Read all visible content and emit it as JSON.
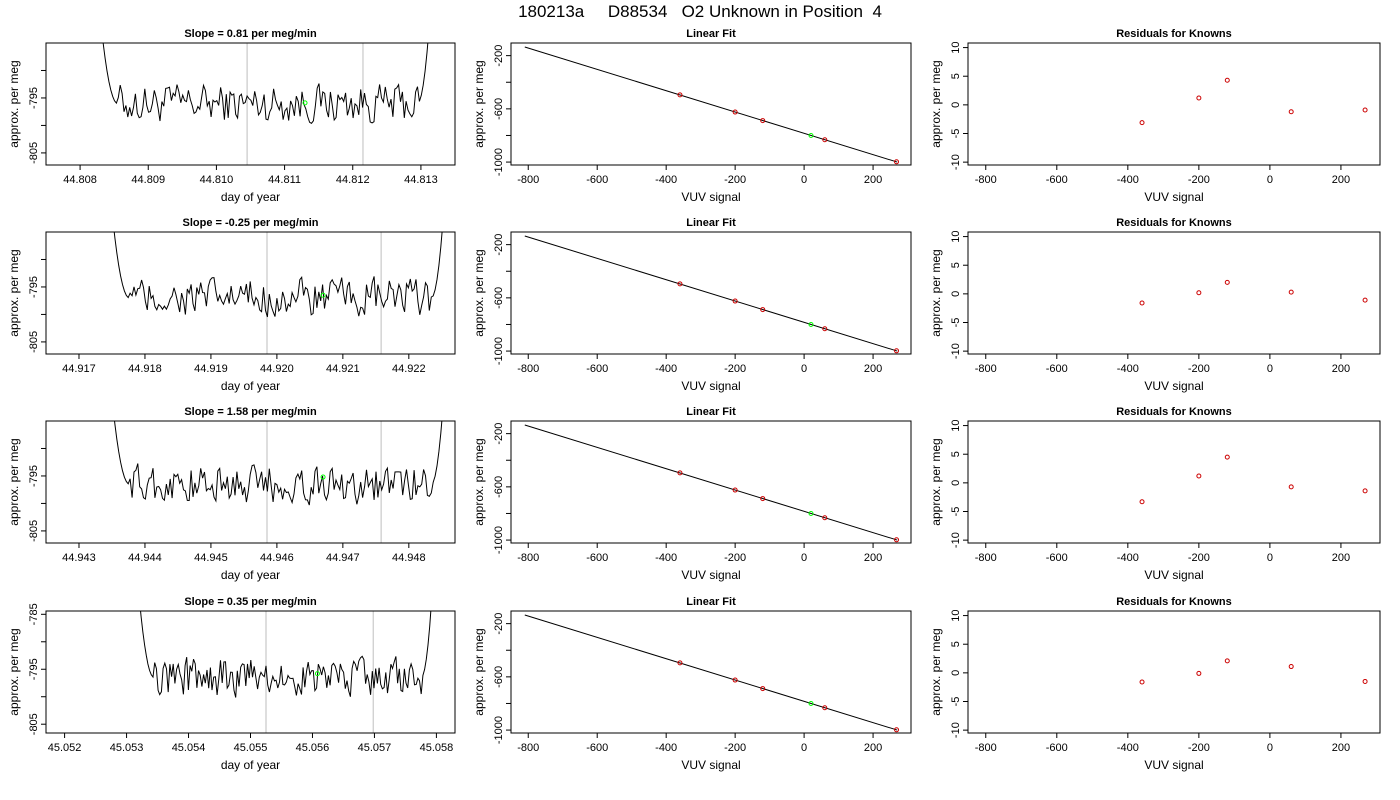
{
  "title": "180213a     D88534   O2 Unknown in Position  4",
  "colors": {
    "line": "#000000",
    "grid": "#bebebe",
    "unknown": "#00ff00",
    "known": "#cc0000"
  },
  "chart_data": [
    {
      "row": 1,
      "type": "line",
      "title": "Slope =  0.81  per meg/min",
      "xlabel": "day of year",
      "ylabel": "approx. per meg",
      "xlim": [
        44.8075,
        44.8135
      ],
      "ylim": [
        -807.2,
        -785.0
      ],
      "xticks": [
        44.808,
        44.809,
        44.81,
        44.811,
        44.812,
        44.813
      ],
      "xtick_labels": [
        "44.808",
        "44.809",
        "44.810",
        "44.811",
        "44.812",
        "44.813"
      ],
      "yticks": [
        -805,
        -800,
        -795,
        -790
      ],
      "ytick_labels": [
        "-805",
        "",
        "-795",
        ""
      ],
      "trace_range": [
        44.8082,
        44.8132
      ],
      "noise_level": -796.0,
      "vlines": [
        44.81045,
        44.81215
      ],
      "unknown_point": [
        44.8113,
        -795.9
      ]
    },
    {
      "row": 1,
      "type": "scatter",
      "title": "Linear Fit",
      "xlabel": "VUV signal",
      "ylabel": "approx. per meg",
      "xlim": [
        -850,
        310
      ],
      "ylim": [
        -1022,
        -105
      ],
      "xticks": [
        -800,
        -600,
        -400,
        -200,
        0,
        200
      ],
      "xtick_labels": [
        "-800",
        "-600",
        "-400",
        "-200",
        "0",
        "200"
      ],
      "yticks": [
        -1000,
        -800,
        -600,
        -400,
        -200
      ],
      "ytick_labels": [
        "-1000",
        "",
        "-600",
        "",
        "-200"
      ],
      "fit_line": [
        [
          -810,
          -135
        ],
        [
          270,
          -1000
        ]
      ],
      "knowns": [
        [
          -360,
          -495
        ],
        [
          -200,
          -624
        ],
        [
          -120,
          -688
        ],
        [
          60,
          -832
        ],
        [
          268,
          -998
        ]
      ],
      "unknown": [
        [
          20,
          -800
        ]
      ]
    },
    {
      "row": 1,
      "type": "scatter",
      "title": "Residuals for Knowns",
      "xlabel": "VUV signal",
      "ylabel": "approx. per meg",
      "xlim": [
        -850,
        310
      ],
      "ylim": [
        -10.5,
        10.8
      ],
      "xticks": [
        -800,
        -600,
        -400,
        -200,
        0,
        200
      ],
      "xtick_labels": [
        "-800",
        "-600",
        "-400",
        "-200",
        "0",
        "200"
      ],
      "yticks": [
        -10,
        -5,
        0,
        5,
        10
      ],
      "ytick_labels": [
        "-10",
        "-5",
        "0",
        "5",
        "10"
      ],
      "points": [
        [
          -360,
          -3.1
        ],
        [
          -200,
          1.2
        ],
        [
          -120,
          4.3
        ],
        [
          60,
          -1.2
        ],
        [
          268,
          -0.9
        ]
      ]
    },
    {
      "row": 2,
      "type": "line",
      "title": "Slope =  -0.25  per meg/min",
      "xlabel": "day of year",
      "ylabel": "approx. per meg",
      "xlim": [
        44.9165,
        44.9227
      ],
      "ylim": [
        -807.2,
        -785.0
      ],
      "xticks": [
        44.917,
        44.918,
        44.919,
        44.92,
        44.921,
        44.922
      ],
      "xtick_labels": [
        "44.917",
        "44.918",
        "44.919",
        "44.920",
        "44.921",
        "44.922"
      ],
      "yticks": [
        -805,
        -800,
        -795,
        -790
      ],
      "ytick_labels": [
        "-805",
        "",
        "-795",
        ""
      ],
      "trace_range": [
        44.9174,
        44.9226
      ],
      "noise_level": -797.0,
      "vlines": [
        44.91985,
        44.92158
      ],
      "unknown_point": [
        44.9207,
        -796.5
      ]
    },
    {
      "row": 2,
      "type": "scatter",
      "title": "Linear Fit",
      "xlabel": "VUV signal",
      "ylabel": "approx. per meg",
      "xlim": [
        -850,
        310
      ],
      "ylim": [
        -1022,
        -105
      ],
      "xticks": [
        -800,
        -600,
        -400,
        -200,
        0,
        200
      ],
      "xtick_labels": [
        "-800",
        "-600",
        "-400",
        "-200",
        "0",
        "200"
      ],
      "yticks": [
        -1000,
        -800,
        -600,
        -400,
        -200
      ],
      "ytick_labels": [
        "-1000",
        "",
        "-600",
        "",
        "-200"
      ],
      "fit_line": [
        [
          -810,
          -135
        ],
        [
          270,
          -1000
        ]
      ],
      "knowns": [
        [
          -360,
          -495
        ],
        [
          -200,
          -624
        ],
        [
          -120,
          -688
        ],
        [
          60,
          -832
        ],
        [
          268,
          -998
        ]
      ],
      "unknown": [
        [
          20,
          -800
        ]
      ]
    },
    {
      "row": 2,
      "type": "scatter",
      "title": "Residuals for Knowns",
      "xlabel": "VUV signal",
      "ylabel": "approx. per meg",
      "xlim": [
        -850,
        310
      ],
      "ylim": [
        -10.5,
        10.8
      ],
      "xticks": [
        -800,
        -600,
        -400,
        -200,
        0,
        200
      ],
      "xtick_labels": [
        "-800",
        "-600",
        "-400",
        "-200",
        "0",
        "200"
      ],
      "yticks": [
        -10,
        -5,
        0,
        5,
        10
      ],
      "ytick_labels": [
        "-10",
        "-5",
        "0",
        "5",
        "10"
      ],
      "points": [
        [
          -360,
          -1.6
        ],
        [
          -200,
          0.2
        ],
        [
          -120,
          2.0
        ],
        [
          60,
          0.3
        ],
        [
          268,
          -1.1
        ]
      ]
    },
    {
      "row": 3,
      "type": "line",
      "title": "Slope =  1.58  per meg/min",
      "xlabel": "day of year",
      "ylabel": "approx. per meg",
      "xlim": [
        44.9425,
        44.9487
      ],
      "ylim": [
        -807.2,
        -785.0
      ],
      "xticks": [
        44.943,
        44.944,
        44.945,
        44.946,
        44.947,
        44.948
      ],
      "xtick_labels": [
        "44.943",
        "44.944",
        "44.945",
        "44.946",
        "44.947",
        "44.948"
      ],
      "yticks": [
        -805,
        -800,
        -795,
        -790
      ],
      "ytick_labels": [
        "-805",
        "",
        "-795",
        ""
      ],
      "trace_range": [
        44.9434,
        44.9486
      ],
      "noise_level": -796.5,
      "vlines": [
        44.94585,
        44.94758
      ],
      "unknown_point": [
        44.9467,
        -795.2
      ]
    },
    {
      "row": 3,
      "type": "scatter",
      "title": "Linear Fit",
      "xlabel": "VUV signal",
      "ylabel": "approx. per meg",
      "xlim": [
        -850,
        310
      ],
      "ylim": [
        -1022,
        -105
      ],
      "xticks": [
        -800,
        -600,
        -400,
        -200,
        0,
        200
      ],
      "xtick_labels": [
        "-800",
        "-600",
        "-400",
        "-200",
        "0",
        "200"
      ],
      "yticks": [
        -1000,
        -800,
        -600,
        -400,
        -200
      ],
      "ytick_labels": [
        "-1000",
        "",
        "-600",
        "",
        "-200"
      ],
      "fit_line": [
        [
          -810,
          -135
        ],
        [
          270,
          -1000
        ]
      ],
      "knowns": [
        [
          -360,
          -495
        ],
        [
          -200,
          -624
        ],
        [
          -120,
          -688
        ],
        [
          60,
          -832
        ],
        [
          268,
          -998
        ]
      ],
      "unknown": [
        [
          20,
          -800
        ]
      ]
    },
    {
      "row": 3,
      "type": "scatter",
      "title": "Residuals for Knowns",
      "xlabel": "VUV signal",
      "ylabel": "approx. per meg",
      "xlim": [
        -850,
        310
      ],
      "ylim": [
        -10.5,
        10.8
      ],
      "xticks": [
        -800,
        -600,
        -400,
        -200,
        0,
        200
      ],
      "xtick_labels": [
        "-800",
        "-600",
        "-400",
        "-200",
        "0",
        "200"
      ],
      "yticks": [
        -10,
        -5,
        0,
        5,
        10
      ],
      "ytick_labels": [
        "-10",
        "-5",
        "0",
        "5",
        "10"
      ],
      "points": [
        [
          -360,
          -3.3
        ],
        [
          -200,
          1.2
        ],
        [
          -120,
          4.5
        ],
        [
          60,
          -0.7
        ],
        [
          268,
          -1.4
        ]
      ]
    },
    {
      "row": 4,
      "type": "line",
      "title": "Slope =  0.35  per meg/min",
      "xlabel": "day of year",
      "ylabel": "approx. per meg",
      "xlim": [
        45.0517,
        45.0583
      ],
      "ylim": [
        -806.6,
        -784.4
      ],
      "xticks": [
        45.052,
        45.053,
        45.054,
        45.055,
        45.056,
        45.057,
        45.058
      ],
      "xtick_labels": [
        "45.052",
        "45.053",
        "45.054",
        "45.055",
        "45.056",
        "45.057",
        "45.058"
      ],
      "yticks": [
        -805,
        -800,
        -795,
        -790,
        -785
      ],
      "ytick_labels": [
        "-805",
        "",
        "-795",
        "",
        "-785"
      ],
      "trace_range": [
        45.0531,
        45.058
      ],
      "noise_level": -796.5,
      "vlines": [
        45.05525,
        45.05698
      ],
      "unknown_point": [
        45.05608,
        -795.8
      ]
    },
    {
      "row": 4,
      "type": "scatter",
      "title": "Linear Fit",
      "xlabel": "VUV signal",
      "ylabel": "approx. per meg",
      "xlim": [
        -850,
        310
      ],
      "ylim": [
        -1022,
        -105
      ],
      "xticks": [
        -800,
        -600,
        -400,
        -200,
        0,
        200
      ],
      "xtick_labels": [
        "-800",
        "-600",
        "-400",
        "-200",
        "0",
        "200"
      ],
      "yticks": [
        -1000,
        -800,
        -600,
        -400,
        -200
      ],
      "ytick_labels": [
        "-1000",
        "",
        "-600",
        "",
        "-200"
      ],
      "fit_line": [
        [
          -810,
          -135
        ],
        [
          270,
          -1000
        ]
      ],
      "knowns": [
        [
          -360,
          -495
        ],
        [
          -200,
          -624
        ],
        [
          -120,
          -688
        ],
        [
          60,
          -832
        ],
        [
          268,
          -998
        ]
      ],
      "unknown": [
        [
          20,
          -800
        ]
      ]
    },
    {
      "row": 4,
      "type": "scatter",
      "title": "Residuals for Knowns",
      "xlabel": "VUV signal",
      "ylabel": "approx. per meg",
      "xlim": [
        -850,
        310
      ],
      "ylim": [
        -10.5,
        10.8
      ],
      "xticks": [
        -800,
        -600,
        -400,
        -200,
        0,
        200
      ],
      "xtick_labels": [
        "-800",
        "-600",
        "-400",
        "-200",
        "0",
        "200"
      ],
      "yticks": [
        -10,
        -5,
        0,
        5,
        10
      ],
      "ytick_labels": [
        "-10",
        "-5",
        "0",
        "5",
        "10"
      ],
      "points": [
        [
          -360,
          -1.6
        ],
        [
          -200,
          -0.1
        ],
        [
          -120,
          2.1
        ],
        [
          60,
          1.1
        ],
        [
          268,
          -1.5
        ]
      ]
    }
  ]
}
